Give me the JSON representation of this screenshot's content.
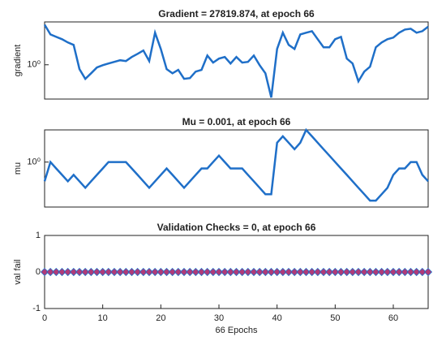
{
  "chart_data": [
    {
      "type": "line",
      "title": "Gradient = 27819.874, at epoch 66",
      "ylabel": "gradient",
      "yscale": "log",
      "xlim": [
        0,
        66
      ],
      "ylim": [
        0.0001,
        100000
      ],
      "yticks": [
        {
          "value": 1,
          "label": "10⁰"
        }
      ],
      "color": "#1f6fc8",
      "x": [
        0,
        1,
        2,
        3,
        4,
        5,
        6,
        7,
        8,
        9,
        10,
        11,
        12,
        13,
        14,
        15,
        16,
        17,
        18,
        19,
        20,
        21,
        22,
        23,
        24,
        25,
        26,
        27,
        28,
        29,
        30,
        31,
        32,
        33,
        34,
        35,
        36,
        37,
        38,
        39,
        40,
        41,
        42,
        43,
        44,
        45,
        46,
        47,
        48,
        49,
        50,
        51,
        52,
        53,
        54,
        55,
        56,
        57,
        58,
        59,
        60,
        61,
        62,
        63,
        64,
        65,
        66
      ],
      "values": [
        48000,
        3500,
        1800,
        950,
        400,
        210,
        0.31,
        0.023,
        0.1,
        0.48,
        0.9,
        1.4,
        2.2,
        3.4,
        2.7,
        8,
        19,
        46,
        2.7,
        5500,
        70,
        0.31,
        0.1,
        0.25,
        0.023,
        0.028,
        0.16,
        0.25,
        12,
        1.8,
        5.2,
        8,
        1.4,
        8,
        1.8,
        2.2,
        12,
        0.9,
        0.1,
        0.00015,
        70,
        5500,
        210,
        70,
        3500,
        5500,
        8300,
        950,
        110,
        110,
        950,
        1800,
        5.2,
        1.4,
        0.012,
        0.16,
        0.59,
        110,
        400,
        950,
        1500,
        5500,
        13000,
        16000,
        5500,
        8300,
        27819.874
      ]
    },
    {
      "type": "line",
      "title": "Mu = 0.001, at epoch 66",
      "ylabel": "mu",
      "yscale": "log",
      "xlim": [
        0,
        66
      ],
      "ylim": [
        1e-07,
        100000
      ],
      "yticks": [
        {
          "value": 1,
          "label": "10⁰"
        }
      ],
      "color": "#1f6fc8",
      "x": [
        0,
        1,
        2,
        3,
        4,
        5,
        6,
        7,
        8,
        9,
        10,
        11,
        12,
        13,
        14,
        15,
        16,
        17,
        18,
        19,
        20,
        21,
        22,
        23,
        24,
        25,
        26,
        27,
        28,
        29,
        30,
        31,
        32,
        33,
        34,
        35,
        36,
        37,
        38,
        39,
        40,
        41,
        42,
        43,
        44,
        45,
        46,
        47,
        48,
        49,
        50,
        51,
        52,
        53,
        54,
        55,
        56,
        57,
        58,
        59,
        60,
        61,
        62,
        63,
        64,
        65,
        66
      ],
      "values": [
        0.001,
        1,
        0.1,
        0.01,
        0.001,
        0.01,
        0.001,
        0.0001,
        0.001,
        0.01,
        0.1,
        1,
        1,
        1,
        1,
        0.1,
        0.01,
        0.001,
        0.0001,
        0.001,
        0.01,
        0.1,
        0.01,
        0.001,
        0.0001,
        0.001,
        0.01,
        0.1,
        0.1,
        1,
        10,
        1,
        0.1,
        0.1,
        0.1,
        0.01,
        0.001,
        0.0001,
        1e-05,
        1e-05,
        1000,
        10000,
        1000,
        100,
        1000,
        100000,
        10000,
        1000,
        100,
        10,
        1,
        0.1,
        0.01,
        0.001,
        0.0001,
        1e-05,
        1e-06,
        1e-06,
        1e-05,
        0.0001,
        0.01,
        0.1,
        0.1,
        1,
        1,
        0.01,
        0.001
      ]
    },
    {
      "type": "line",
      "title": "Validation Checks = 0, at epoch 66",
      "ylabel": "val fail",
      "xlabel": "66 Epochs",
      "xlim": [
        0,
        66
      ],
      "ylim": [
        -1,
        1
      ],
      "yticks": [
        -1,
        0,
        1
      ],
      "xticks": [
        0,
        10,
        20,
        30,
        40,
        50,
        60
      ],
      "color": "#1f6fc8",
      "marker": "diamond",
      "marker_color": "#b03a78",
      "x": [
        0,
        1,
        2,
        3,
        4,
        5,
        6,
        7,
        8,
        9,
        10,
        11,
        12,
        13,
        14,
        15,
        16,
        17,
        18,
        19,
        20,
        21,
        22,
        23,
        24,
        25,
        26,
        27,
        28,
        29,
        30,
        31,
        32,
        33,
        34,
        35,
        36,
        37,
        38,
        39,
        40,
        41,
        42,
        43,
        44,
        45,
        46,
        47,
        48,
        49,
        50,
        51,
        52,
        53,
        54,
        55,
        56,
        57,
        58,
        59,
        60,
        61,
        62,
        63,
        64,
        65,
        66
      ],
      "values": [
        0,
        0,
        0,
        0,
        0,
        0,
        0,
        0,
        0,
        0,
        0,
        0,
        0,
        0,
        0,
        0,
        0,
        0,
        0,
        0,
        0,
        0,
        0,
        0,
        0,
        0,
        0,
        0,
        0,
        0,
        0,
        0,
        0,
        0,
        0,
        0,
        0,
        0,
        0,
        0,
        0,
        0,
        0,
        0,
        0,
        0,
        0,
        0,
        0,
        0,
        0,
        0,
        0,
        0,
        0,
        0,
        0,
        0,
        0,
        0,
        0,
        0,
        0,
        0,
        0,
        0,
        0
      ]
    }
  ]
}
